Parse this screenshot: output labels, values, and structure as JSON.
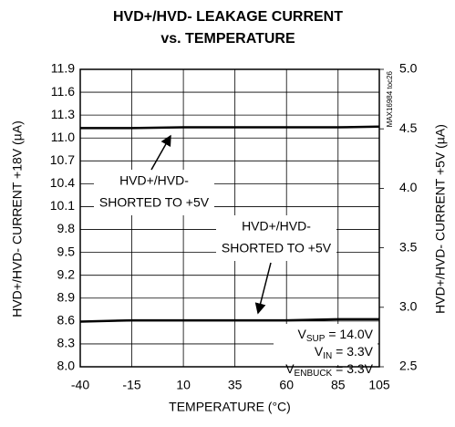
{
  "chart_data": {
    "type": "line",
    "title": [
      "HVD+/HVD- LEAKAGE CURRENT",
      "vs. TEMPERATURE"
    ],
    "x_label": "TEMPERATURE (°C)",
    "y_label": "HVD+/HVD- CURRENT +18V (µA)",
    "y2_label": "HVD+/HVD- CURRENT +5V (µA)",
    "x": [
      -40,
      -15,
      10,
      35,
      60,
      85,
      105
    ],
    "series": [
      {
        "color": "#000000",
        "values": [
          11.13,
          11.13,
          11.14,
          11.14,
          11.14,
          11.14,
          11.15
        ]
      },
      {
        "color": "#000000",
        "axis": "y2",
        "values": [
          2.88,
          2.89,
          2.89,
          2.89,
          2.89,
          2.9,
          2.9
        ]
      }
    ],
    "xlim": [
      -40,
      105
    ],
    "xticks": [
      -40,
      -15,
      10,
      35,
      60,
      85,
      105
    ],
    "ylim": [
      8,
      11.9
    ],
    "yticks": [
      {
        "value": 8,
        "label": "8.0"
      },
      8.3,
      8.6,
      8.9,
      9.2,
      9.5,
      9.8,
      10.1,
      10.4,
      10.7,
      {
        "value": 11,
        "label": "11.0"
      },
      11.3,
      11.6,
      11.9
    ],
    "y2lim": [
      2.5,
      5
    ],
    "y2ticks": [
      2.5,
      {
        "value": 3,
        "label": "3.0"
      },
      3.5,
      {
        "value": 4,
        "label": "4.0"
      },
      4.5,
      {
        "value": 5,
        "label": "5.0"
      }
    ],
    "grid": true,
    "annotations": [
      {
        "lines": [
          "HVD+/HVD-",
          "SHORTED TO +5V"
        ]
      },
      {
        "lines": [
          "HVD+/HVD-",
          "SHORTED TO +5V"
        ]
      }
    ],
    "conditions": [
      {
        "symbol": "V",
        "sub": "SUP",
        "text": " = 14.0V"
      },
      {
        "symbol": "V",
        "sub": "IN",
        "text": " = 3.3V"
      },
      {
        "symbol": "V",
        "sub": "ENBUCK",
        "text": " = 3.3V"
      }
    ],
    "watermark": "MAX16984 toc26"
  }
}
